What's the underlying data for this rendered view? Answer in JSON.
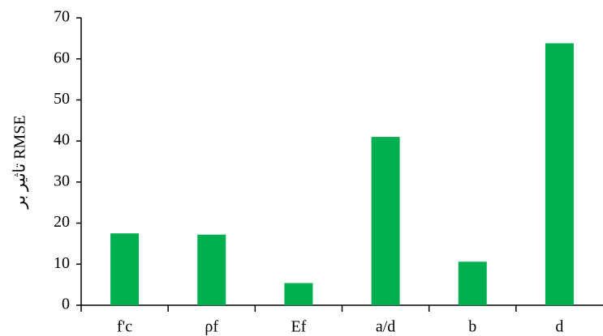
{
  "chart_data": {
    "type": "bar",
    "y_label": "تاثیر بر RMSE",
    "categories": [
      "f'c",
      "ρf",
      "Ef",
      "a/d",
      "b",
      "d"
    ],
    "values": [
      17.5,
      17.2,
      5.4,
      41,
      10.6,
      63.8
    ],
    "color": "#00b050",
    "ylim": [
      0,
      70
    ],
    "yticks": [
      0,
      10,
      20,
      30,
      40,
      50,
      60,
      70
    ],
    "grid": false
  }
}
